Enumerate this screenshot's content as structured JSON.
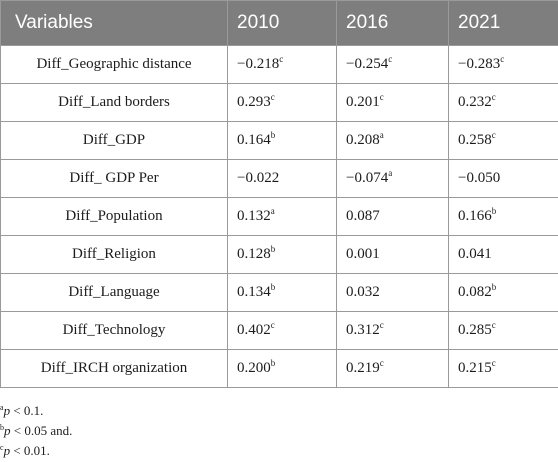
{
  "table": {
    "headers": [
      "Variables",
      "2010",
      "2016",
      "2021"
    ],
    "rows": [
      {
        "variable": "Diff_Geographic distance",
        "cells": [
          {
            "value": "−0.218",
            "sig": "c"
          },
          {
            "value": "−0.254",
            "sig": "c"
          },
          {
            "value": "−0.283",
            "sig": "c"
          }
        ]
      },
      {
        "variable": "Diff_Land borders",
        "cells": [
          {
            "value": "0.293",
            "sig": "c"
          },
          {
            "value": "0.201",
            "sig": "c"
          },
          {
            "value": "0.232",
            "sig": "c"
          }
        ]
      },
      {
        "variable": "Diff_GDP",
        "cells": [
          {
            "value": "0.164",
            "sig": "b"
          },
          {
            "value": "0.208",
            "sig": "a"
          },
          {
            "value": "0.258",
            "sig": "c"
          }
        ]
      },
      {
        "variable": "Diff_ GDP Per",
        "cells": [
          {
            "value": "−0.022",
            "sig": ""
          },
          {
            "value": "−0.074",
            "sig": "a"
          },
          {
            "value": "−0.050",
            "sig": ""
          }
        ]
      },
      {
        "variable": "Diff_Population",
        "cells": [
          {
            "value": "0.132",
            "sig": "a"
          },
          {
            "value": "0.087",
            "sig": ""
          },
          {
            "value": "0.166",
            "sig": "b"
          }
        ]
      },
      {
        "variable": "Diff_Religion",
        "cells": [
          {
            "value": "0.128",
            "sig": "b"
          },
          {
            "value": "0.001",
            "sig": ""
          },
          {
            "value": "0.041",
            "sig": ""
          }
        ]
      },
      {
        "variable": "Diff_Language",
        "cells": [
          {
            "value": "0.134",
            "sig": "b"
          },
          {
            "value": "0.032",
            "sig": ""
          },
          {
            "value": "0.082",
            "sig": "b"
          }
        ]
      },
      {
        "variable": "Diff_Technology",
        "cells": [
          {
            "value": "0.402",
            "sig": "c"
          },
          {
            "value": "0.312",
            "sig": "c"
          },
          {
            "value": "0.285",
            "sig": "c"
          }
        ]
      },
      {
        "variable": "Diff_IRCH organization",
        "cells": [
          {
            "value": "0.200",
            "sig": "b"
          },
          {
            "value": "0.219",
            "sig": "c"
          },
          {
            "value": "0.215",
            "sig": "c"
          }
        ]
      }
    ]
  },
  "footnotes": [
    {
      "mark": "a",
      "p": "p",
      "text": " < 0.1."
    },
    {
      "mark": "b",
      "p": "p",
      "text": " < 0.05 and."
    },
    {
      "mark": "c",
      "p": "p",
      "text": " < 0.01."
    }
  ]
}
